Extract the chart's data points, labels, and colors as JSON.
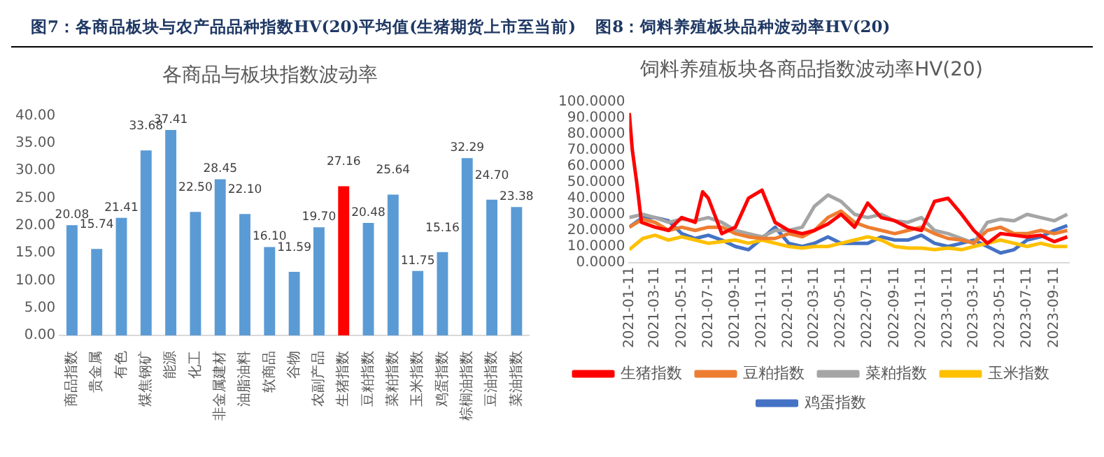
{
  "chart_data": [
    {
      "type": "bar",
      "title": "各商品与板块指数波动率",
      "annotations": [
        "图7：各商品板块与农产品品种指数HV(20)平均值(生猪期货上市至当前)"
      ],
      "categories": [
        "商品指数",
        "贵金属",
        "有色",
        "煤焦钢矿",
        "能源",
        "化工",
        "非金属建材",
        "油脂油料",
        "软商品",
        "谷物",
        "农副产品",
        "生猪指数",
        "豆粕指数",
        "菜粕指数",
        "玉米指数",
        "鸡蛋指数",
        "棕榈油指数",
        "豆油指数",
        "菜油指数"
      ],
      "values": [
        20.08,
        15.74,
        21.41,
        33.68,
        37.41,
        22.5,
        28.45,
        22.1,
        16.1,
        11.59,
        19.7,
        27.16,
        20.48,
        25.64,
        11.75,
        15.16,
        32.29,
        24.7,
        23.38
      ],
      "colors": [
        "#5b9bd5",
        "#5b9bd5",
        "#5b9bd5",
        "#5b9bd5",
        "#5b9bd5",
        "#5b9bd5",
        "#5b9bd5",
        "#5b9bd5",
        "#5b9bd5",
        "#5b9bd5",
        "#5b9bd5",
        "#ff0000",
        "#5b9bd5",
        "#5b9bd5",
        "#5b9bd5",
        "#5b9bd5",
        "#5b9bd5",
        "#5b9bd5",
        "#5b9bd5"
      ],
      "value_labels": [
        "20.08",
        "15.74",
        "21.41",
        "33.68",
        "37.41",
        "22.50",
        "28.45",
        "22.10",
        "16.10",
        "11.59",
        "19.70",
        "27.16",
        "20.48",
        "25.64",
        "11.75",
        "15.16",
        "32.29",
        "24.70",
        "23.38"
      ],
      "ylim": [
        0,
        40
      ],
      "yticks": [
        {
          "value": 0,
          "label": "0.00"
        },
        {
          "value": 5,
          "label": "5.00"
        },
        {
          "value": 10,
          "label": "10.00"
        },
        {
          "value": 15,
          "label": "15.00"
        },
        {
          "value": 20,
          "label": "20.00"
        },
        {
          "value": 25,
          "label": "25.00"
        },
        {
          "value": 30,
          "label": "30.00"
        },
        {
          "value": 35,
          "label": "35.00"
        },
        {
          "value": 40,
          "label": "40.00"
        }
      ],
      "grid": false,
      "legend": false
    },
    {
      "type": "line",
      "title": "饲料养殖板块各商品指数波动率HV(20)",
      "annotations": [
        "图8：饲料养殖板块品种波动率HV(20)"
      ],
      "x": [
        "2021-01-11",
        "2021-02-11",
        "2021-03-11",
        "2021-04-11",
        "2021-05-11",
        "2021-06-11",
        "2021-07-11",
        "2021-08-11",
        "2021-09-11",
        "2021-10-11",
        "2021-11-11",
        "2021-12-11",
        "2022-01-11",
        "2022-02-11",
        "2022-03-11",
        "2022-04-11",
        "2022-05-11",
        "2022-06-11",
        "2022-07-11",
        "2022-08-11",
        "2022-09-11",
        "2022-10-11",
        "2022-11-11",
        "2022-12-11",
        "2023-01-11",
        "2023-02-11",
        "2023-03-11",
        "2023-04-11",
        "2023-05-11",
        "2023-06-11",
        "2023-07-11",
        "2023-08-11",
        "2023-09-11",
        "2023-10-11"
      ],
      "series": [
        {
          "name": "生猪指数",
          "color": "#ff0000",
          "x": [
            "2021-01-11",
            "2021-01-18",
            "2021-01-28",
            "2021-02-08",
            "2021-03-11",
            "2021-04-11",
            "2021-05-11",
            "2021-06-11",
            "2021-06-28",
            "2021-07-11",
            "2021-08-11",
            "2021-09-11",
            "2021-10-11",
            "2021-11-11",
            "2021-12-11",
            "2022-01-11",
            "2022-02-11",
            "2022-03-11",
            "2022-04-11",
            "2022-05-11",
            "2022-06-11",
            "2022-07-11",
            "2022-08-11",
            "2022-09-11",
            "2022-10-11",
            "2022-11-11",
            "2022-12-11",
            "2023-01-11",
            "2023-02-11",
            "2023-03-11",
            "2023-04-11",
            "2023-05-11",
            "2023-06-11",
            "2023-07-11",
            "2023-08-11",
            "2023-09-11",
            "2023-10-11"
          ],
          "values": [
            93,
            70,
            50,
            25,
            22,
            20,
            28,
            25,
            44,
            40,
            18,
            22,
            40,
            45,
            25,
            20,
            18,
            20,
            24,
            30,
            22,
            37,
            28,
            26,
            22,
            20,
            38,
            40,
            30,
            20,
            12,
            18,
            17,
            16,
            17,
            13,
            16
          ]
        },
        {
          "name": "豆粕指数",
          "color": "#ed7d31",
          "values": [
            22,
            27,
            25,
            20,
            22,
            20,
            22,
            22,
            18,
            16,
            15,
            15,
            18,
            16,
            20,
            28,
            32,
            25,
            22,
            20,
            18,
            20,
            22,
            18,
            15,
            14,
            12,
            20,
            22,
            18,
            18,
            20,
            18,
            20
          ]
        },
        {
          "name": "菜粕指数",
          "color": "#a5a5a5",
          "values": [
            28,
            30,
            28,
            25,
            27,
            26,
            28,
            25,
            20,
            18,
            16,
            20,
            20,
            22,
            35,
            42,
            38,
            30,
            28,
            30,
            26,
            25,
            28,
            20,
            18,
            15,
            12,
            25,
            27,
            26,
            30,
            28,
            26,
            30
          ]
        },
        {
          "name": "玉米指数",
          "color": "#ffc000",
          "values": [
            8,
            15,
            17,
            14,
            16,
            14,
            12,
            13,
            14,
            12,
            14,
            12,
            10,
            9,
            10,
            10,
            12,
            14,
            16,
            14,
            10,
            9,
            9,
            8,
            9,
            8,
            10,
            12,
            14,
            12,
            10,
            12,
            10,
            10
          ]
        },
        {
          "name": "鸡蛋指数",
          "color": "#4472c4",
          "values": [
            22,
            28,
            28,
            26,
            18,
            15,
            17,
            14,
            10,
            8,
            15,
            22,
            12,
            10,
            12,
            16,
            12,
            12,
            12,
            16,
            14,
            14,
            17,
            12,
            10,
            12,
            14,
            10,
            6,
            8,
            14,
            16,
            20,
            23
          ]
        }
      ],
      "xlim": [
        "2021-01-11",
        "2023-10-15"
      ],
      "xticks": [
        "2021-01-11",
        "2021-03-11",
        "2021-05-11",
        "2021-07-11",
        "2021-09-11",
        "2021-11-11",
        "2022-01-11",
        "2022-03-11",
        "2022-05-11",
        "2022-07-11",
        "2022-09-11",
        "2022-11-11",
        "2023-01-11",
        "2023-03-11",
        "2023-05-11",
        "2023-07-11",
        "2023-09-11"
      ],
      "ylim": [
        0,
        100
      ],
      "yticks": [
        {
          "value": 0,
          "label": "0.0000"
        },
        {
          "value": 10,
          "label": "10.0000"
        },
        {
          "value": 20,
          "label": "20.0000"
        },
        {
          "value": 30,
          "label": "30.0000"
        },
        {
          "value": 40,
          "label": "40.0000"
        },
        {
          "value": 50,
          "label": "50.0000"
        },
        {
          "value": 60,
          "label": "60.0000"
        },
        {
          "value": 70,
          "label": "70.0000"
        },
        {
          "value": 80,
          "label": "80.0000"
        },
        {
          "value": 90,
          "label": "90.0000"
        },
        {
          "value": 100,
          "label": "100.0000"
        }
      ],
      "grid": false,
      "legend": "bottom",
      "marker": "none",
      "line_style": "solid"
    }
  ]
}
